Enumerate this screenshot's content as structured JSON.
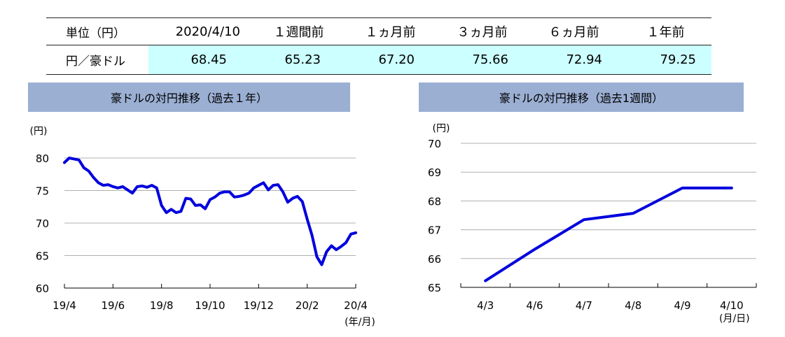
{
  "table": {
    "header_label": "単位（円）",
    "columns": [
      "2020/4/10",
      "１週間前",
      "１ヵ月前",
      "３ヵ月前",
      "６ヵ月前",
      "１年前"
    ],
    "row_label": "円／豪ドル",
    "values": [
      "68.45",
      "65.23",
      "67.20",
      "75.66",
      "72.94",
      "79.25"
    ]
  },
  "colors": {
    "line": "#0000dd",
    "title_bg": "#9bafd3",
    "value_bg": "#ccffff",
    "grid": "#b0b0b0"
  },
  "chart_data": [
    {
      "type": "line",
      "title": "豪ドルの対円推移（過去１年）",
      "ylabel": "(円)",
      "xlabel": "(年/月)",
      "x_ticks": [
        "19/4",
        "19/6",
        "19/8",
        "19/10",
        "19/12",
        "20/2",
        "20/4"
      ],
      "y_ticks": [
        60,
        65,
        70,
        75,
        80
      ],
      "ylim": [
        60,
        80
      ],
      "grid": true,
      "series": [
        {
          "x": [
            0,
            0.1,
            0.3,
            0.4,
            0.5,
            0.6,
            0.7,
            0.8,
            0.9,
            1.0,
            1.1,
            1.2,
            1.3,
            1.4,
            1.5,
            1.6,
            1.7,
            1.8,
            1.9,
            2.0,
            2.1,
            2.2,
            2.3,
            2.4,
            2.5,
            2.6,
            2.7,
            2.8,
            2.9,
            3.0,
            3.1,
            3.2,
            3.3,
            3.4,
            3.5,
            3.6,
            3.7,
            3.8,
            3.9,
            4.0,
            4.1,
            4.2,
            4.3,
            4.4,
            4.5,
            4.6,
            4.7,
            4.8,
            4.9,
            5.0,
            5.1,
            5.2,
            5.3,
            5.4,
            5.5,
            5.6,
            5.7,
            5.8,
            5.9,
            6.0
          ],
          "values": [
            79.3,
            80.0,
            79.7,
            78.5,
            78.0,
            77.0,
            76.2,
            75.8,
            75.9,
            75.6,
            75.4,
            75.6,
            75.1,
            74.6,
            75.6,
            75.7,
            75.5,
            75.8,
            75.4,
            72.7,
            71.6,
            72.1,
            71.6,
            71.8,
            73.8,
            73.7,
            72.7,
            72.8,
            72.2,
            73.6,
            74.0,
            74.6,
            74.8,
            74.8,
            74.0,
            74.1,
            74.3,
            74.6,
            75.4,
            75.8,
            76.2,
            75.1,
            75.8,
            75.9,
            74.8,
            73.2,
            73.8,
            74.1,
            73.3,
            70.6,
            68.1,
            64.8,
            63.6,
            65.6,
            66.5,
            65.9,
            66.4,
            67.0,
            68.3,
            68.5
          ]
        }
      ]
    },
    {
      "type": "line",
      "title": "豪ドルの対円推移（過去1週間）",
      "ylabel": "(円)",
      "xlabel": "(月/日)",
      "categories": [
        "4/3",
        "4/6",
        "4/7",
        "4/8",
        "4/9",
        "4/10"
      ],
      "y_ticks": [
        65,
        66,
        67,
        68,
        69,
        70
      ],
      "ylim": [
        65,
        70
      ],
      "grid": true,
      "series": [
        {
          "values": [
            65.23,
            66.32,
            67.35,
            67.57,
            68.45,
            68.45
          ]
        }
      ]
    }
  ]
}
